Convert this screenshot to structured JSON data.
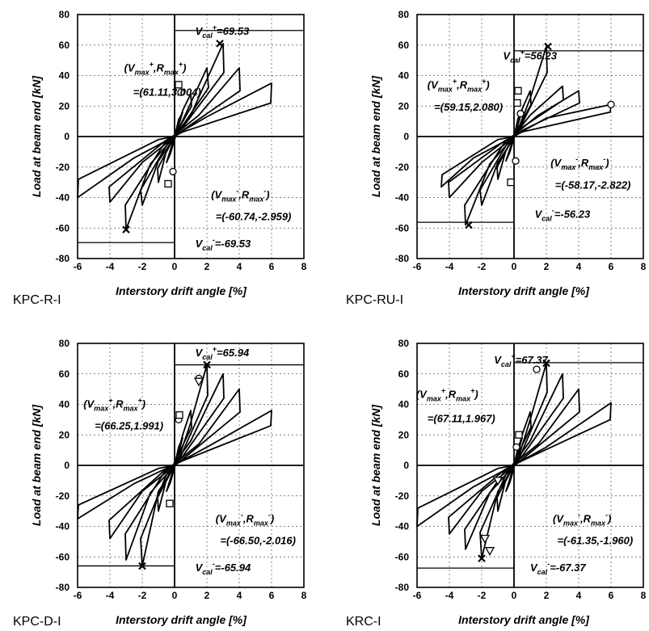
{
  "colors": {
    "ink": "#000000",
    "grid": "#555555",
    "background": "#ffffff"
  },
  "chart_data": [
    {
      "type": "line",
      "title": "KPC-R-I",
      "xlabel": "Interstory drift angle [%]",
      "ylabel": "Load at beam end [kN]",
      "xlim": [
        -6,
        8
      ],
      "ylim": [
        -80,
        80
      ],
      "xticks": [
        -6,
        -4,
        -2,
        0,
        2,
        4,
        6,
        8
      ],
      "yticks": [
        -80,
        -60,
        -40,
        -20,
        0,
        20,
        40,
        60,
        80
      ],
      "grid": true,
      "vcal_pos": 69.53,
      "vcal_neg": -69.53,
      "annotations": {
        "vcal_pos": "=69.53",
        "vcal_neg": "=-69.53",
        "vmax_pos": "=(61.11,3.004)",
        "vmax_neg": "=(-60.74,-2.959)"
      },
      "series": [
        {
          "values": [
            [
              0,
              0
            ],
            [
              0.25,
              11
            ],
            [
              0.5,
              16
            ],
            [
              -0.25,
              -11
            ],
            [
              -0.5,
              -17
            ],
            [
              0,
              0
            ],
            [
              0.5,
              17
            ],
            [
              1.0,
              28
            ],
            [
              1.05,
              20
            ],
            [
              -0.5,
              -9
            ],
            [
              -1.0,
              -30
            ],
            [
              -1.05,
              -21
            ],
            [
              0.3,
              6
            ],
            [
              1.0,
              22
            ],
            [
              2.0,
              45
            ],
            [
              2.1,
              32
            ],
            [
              0.3,
              4
            ],
            [
              -1.0,
              -16
            ],
            [
              -2.0,
              -45
            ],
            [
              -2.1,
              -35
            ],
            [
              -0.5,
              -6
            ],
            [
              1.0,
              14
            ],
            [
              3.0,
              61
            ],
            [
              3.05,
              42
            ],
            [
              0.5,
              6
            ],
            [
              -1.5,
              -18
            ],
            [
              -3.0,
              -61
            ],
            [
              -3.05,
              -45
            ],
            [
              -0.6,
              -4
            ],
            [
              1.5,
              14
            ],
            [
              4.0,
              45
            ],
            [
              4.05,
              30
            ],
            [
              0.5,
              4
            ],
            [
              -2.0,
              -17
            ],
            [
              -4.0,
              -43
            ],
            [
              -4.05,
              -33
            ],
            [
              -0.6,
              -3
            ],
            [
              2.0,
              13
            ],
            [
              6.0,
              35
            ],
            [
              5.95,
              22
            ],
            [
              0.5,
              3
            ],
            [
              -2.5,
              -14
            ],
            [
              -6.0,
              -40
            ],
            [
              -5.95,
              -28
            ],
            [
              -1.0,
              -2
            ],
            [
              0,
              0
            ]
          ]
        }
      ],
      "markers": {
        "cross": [
          [
            -3.0,
            -61
          ],
          [
            2.8,
            61
          ]
        ],
        "circle": [
          [
            -0.1,
            -23
          ],
          [
            0.4,
            29
          ]
        ],
        "square": [
          [
            -0.4,
            -31
          ],
          [
            0.25,
            34
          ]
        ]
      }
    },
    {
      "type": "line",
      "title": "KPC-RU-I",
      "xlabel": "Interstory drift angle [%]",
      "ylabel": "Load at beam end [kN]",
      "xlim": [
        -6,
        8
      ],
      "ylim": [
        -80,
        80
      ],
      "xticks": [
        -6,
        -4,
        -2,
        0,
        2,
        4,
        6,
        8
      ],
      "yticks": [
        -80,
        -60,
        -40,
        -20,
        0,
        20,
        40,
        60,
        80
      ],
      "grid": true,
      "vcal_pos": 56.23,
      "vcal_neg": -56.23,
      "annotations": {
        "vcal_pos": "=56.23",
        "vcal_neg": "=-56.23",
        "vmax_pos": "=(59.15,2.080)",
        "vmax_neg": "=(-58.17,-2.822)"
      },
      "series": [
        {
          "values": [
            [
              0,
              0
            ],
            [
              0.25,
              12
            ],
            [
              0.5,
              17
            ],
            [
              -0.25,
              -10
            ],
            [
              -0.5,
              -16
            ],
            [
              0,
              0
            ],
            [
              0.5,
              18
            ],
            [
              1.0,
              30
            ],
            [
              1.05,
              21
            ],
            [
              -0.5,
              -9
            ],
            [
              -1.0,
              -28
            ],
            [
              -1.05,
              -20
            ],
            [
              0.3,
              6
            ],
            [
              1.0,
              25
            ],
            [
              2.0,
              59
            ],
            [
              2.05,
              42
            ],
            [
              0.3,
              4
            ],
            [
              -1.0,
              -17
            ],
            [
              -2.0,
              -45
            ],
            [
              -2.1,
              -35
            ],
            [
              -0.5,
              -6
            ],
            [
              1.0,
              14
            ],
            [
              3.0,
              33
            ],
            [
              3.05,
              24
            ],
            [
              0.5,
              6
            ],
            [
              -1.5,
              -18
            ],
            [
              -3.0,
              -58
            ],
            [
              -3.05,
              -45
            ],
            [
              -0.6,
              -4
            ],
            [
              1.5,
              14
            ],
            [
              4.0,
              30
            ],
            [
              4.05,
              22
            ],
            [
              0.5,
              4
            ],
            [
              -2.0,
              -17
            ],
            [
              -4.0,
              -40
            ],
            [
              -4.05,
              -30
            ],
            [
              -0.6,
              -3
            ],
            [
              2.0,
              12
            ],
            [
              6.0,
              21
            ],
            [
              5.95,
              16
            ],
            [
              0.5,
              3
            ],
            [
              -2.5,
              -14
            ],
            [
              -4.5,
              -33
            ],
            [
              -4.45,
              -25
            ],
            [
              -1.0,
              -2
            ],
            [
              0,
              0
            ]
          ]
        }
      ],
      "markers": {
        "cross": [
          [
            -2.8,
            -58
          ],
          [
            2.1,
            59
          ]
        ],
        "circle": [
          [
            0.1,
            -16
          ],
          [
            6.0,
            21
          ],
          [
            0.4,
            15
          ]
        ],
        "square": [
          [
            -0.2,
            -30
          ],
          [
            0.2,
            22
          ],
          [
            0.25,
            30
          ]
        ]
      }
    },
    {
      "type": "line",
      "title": "KPC-D-I",
      "xlabel": "Interstory drift angle [%]",
      "ylabel": "Load at beam end [kN]",
      "xlim": [
        -6,
        8
      ],
      "ylim": [
        -80,
        80
      ],
      "xticks": [
        -6,
        -4,
        -2,
        0,
        2,
        4,
        6,
        8
      ],
      "yticks": [
        -80,
        -60,
        -40,
        -20,
        0,
        20,
        40,
        60,
        80
      ],
      "grid": true,
      "vcal_pos": 65.94,
      "vcal_neg": -65.94,
      "annotations": {
        "vcal_pos": "=65.94",
        "vcal_neg": "=-65.94",
        "vmax_pos": "=(66.25,1.991)",
        "vmax_neg": "=(-66.50,-2.016)"
      },
      "series": [
        {
          "values": [
            [
              0,
              0
            ],
            [
              0.25,
              12
            ],
            [
              0.5,
              18
            ],
            [
              -0.25,
              -11
            ],
            [
              -0.5,
              -17
            ],
            [
              0,
              0
            ],
            [
              0.5,
              20
            ],
            [
              1.0,
              36
            ],
            [
              1.05,
              25
            ],
            [
              -0.5,
              -9
            ],
            [
              -1.0,
              -30
            ],
            [
              -1.05,
              -21
            ],
            [
              0.3,
              6
            ],
            [
              1.0,
              28
            ],
            [
              2.0,
              66
            ],
            [
              2.05,
              46
            ],
            [
              0.3,
              4
            ],
            [
              -1.0,
              -17
            ],
            [
              -2.0,
              -66
            ],
            [
              -2.1,
              -48
            ],
            [
              -0.5,
              -6
            ],
            [
              1.0,
              16
            ],
            [
              3.0,
              60
            ],
            [
              3.05,
              44
            ],
            [
              0.5,
              6
            ],
            [
              -1.5,
              -18
            ],
            [
              -3.0,
              -62
            ],
            [
              -3.05,
              -45
            ],
            [
              -0.6,
              -4
            ],
            [
              1.5,
              14
            ],
            [
              4.0,
              50
            ],
            [
              4.05,
              35
            ],
            [
              0.5,
              4
            ],
            [
              -2.0,
              -17
            ],
            [
              -4.0,
              -48
            ],
            [
              -4.05,
              -36
            ],
            [
              -0.6,
              -3
            ],
            [
              2.0,
              12
            ],
            [
              6.0,
              36
            ],
            [
              5.95,
              26
            ],
            [
              0.5,
              3
            ],
            [
              -2.5,
              -12
            ],
            [
              -6.0,
              -35
            ],
            [
              -5.95,
              -26
            ],
            [
              -1.0,
              -2
            ],
            [
              0,
              0
            ]
          ]
        }
      ],
      "markers": {
        "cross": [
          [
            -2.0,
            -66
          ],
          [
            2.0,
            66
          ]
        ],
        "circle": [
          [
            1.5,
            57
          ],
          [
            0.25,
            30
          ]
        ],
        "square": [
          [
            -0.3,
            -25
          ],
          [
            0.3,
            33
          ]
        ],
        "triangle": [
          [
            1.5,
            55
          ]
        ]
      }
    },
    {
      "type": "line",
      "title": "KRC-I",
      "xlabel": "Interstory drift angle [%]",
      "ylabel": "Load at beam end [kN]",
      "xlim": [
        -6,
        8
      ],
      "ylim": [
        -80,
        80
      ],
      "xticks": [
        -6,
        -4,
        -2,
        0,
        2,
        4,
        6,
        8
      ],
      "yticks": [
        -80,
        -60,
        -40,
        -20,
        0,
        20,
        40,
        60,
        80
      ],
      "grid": true,
      "vcal_pos": 67.37,
      "vcal_neg": -67.37,
      "annotations": {
        "vcal_pos": "=67.37",
        "vcal_neg": "=-67.37",
        "vmax_pos": "=(67.11,1.967)",
        "vmax_neg": "=(-61.35,-1.960)"
      },
      "series": [
        {
          "values": [
            [
              0,
              0
            ],
            [
              0.25,
              12
            ],
            [
              0.5,
              18
            ],
            [
              -0.25,
              -11
            ],
            [
              -0.5,
              -17
            ],
            [
              0,
              0
            ],
            [
              0.5,
              20
            ],
            [
              1.0,
              35
            ],
            [
              1.05,
              25
            ],
            [
              -0.5,
              -9
            ],
            [
              -1.0,
              -30
            ],
            [
              -1.05,
              -21
            ],
            [
              0.3,
              6
            ],
            [
              1.0,
              30
            ],
            [
              2.0,
              67
            ],
            [
              2.05,
              48
            ],
            [
              0.3,
              4
            ],
            [
              -1.0,
              -17
            ],
            [
              -2.0,
              -61
            ],
            [
              -2.1,
              -44
            ],
            [
              -0.5,
              -6
            ],
            [
              1.0,
              16
            ],
            [
              3.0,
              60
            ],
            [
              3.05,
              44
            ],
            [
              0.5,
              6
            ],
            [
              -1.5,
              -18
            ],
            [
              -3.0,
              -55
            ],
            [
              -3.05,
              -42
            ],
            [
              -0.6,
              -4
            ],
            [
              1.5,
              14
            ],
            [
              4.0,
              50
            ],
            [
              4.05,
              35
            ],
            [
              0.5,
              4
            ],
            [
              -2.0,
              -17
            ],
            [
              -4.0,
              -45
            ],
            [
              -4.05,
              -34
            ],
            [
              -0.6,
              -3
            ],
            [
              2.0,
              12
            ],
            [
              6.0,
              41
            ],
            [
              5.95,
              30
            ],
            [
              0.5,
              3
            ],
            [
              -2.5,
              -14
            ],
            [
              -6.0,
              -40
            ],
            [
              -5.95,
              -28
            ],
            [
              -1.0,
              -2
            ],
            [
              0,
              0
            ]
          ]
        }
      ],
      "markers": {
        "cross": [
          [
            -2.0,
            -61
          ],
          [
            2.0,
            67
          ]
        ],
        "circle": [
          [
            1.4,
            63
          ],
          [
            0.15,
            12
          ]
        ],
        "square": [
          [
            0.3,
            20
          ]
        ],
        "triangle": [
          [
            -1.5,
            -56
          ],
          [
            -1.8,
            -48
          ],
          [
            -1.0,
            -10
          ]
        ]
      }
    }
  ]
}
